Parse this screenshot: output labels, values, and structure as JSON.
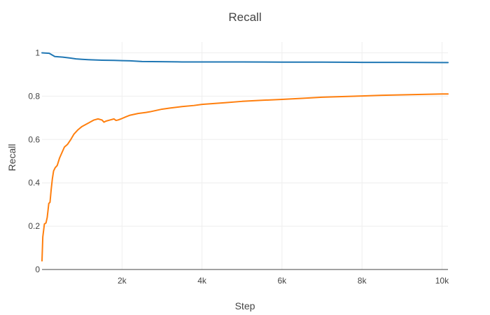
{
  "chart_data": {
    "type": "line",
    "title": "Recall",
    "xlabel": "Step",
    "ylabel": "Recall",
    "xlim": [
      0,
      10150
    ],
    "ylim": [
      0,
      1.05
    ],
    "grid": true,
    "x_ticks": [
      2000,
      4000,
      6000,
      8000,
      10000
    ],
    "x_tick_labels": [
      "2k",
      "4k",
      "6k",
      "8k",
      "10k"
    ],
    "y_ticks": [
      0,
      0.2,
      0.4,
      0.6,
      0.8,
      1
    ],
    "y_tick_labels": [
      "0",
      "0.2",
      "0.4",
      "0.6",
      "0.8",
      "1"
    ],
    "series": [
      {
        "color": "#1f77b4",
        "x": [
          0,
          180,
          320,
          520,
          700,
          850,
          1000,
          1200,
          1500,
          1800,
          2000,
          2200,
          2500,
          3000,
          3500,
          4000,
          5000,
          6000,
          7000,
          8000,
          9000,
          10000,
          10150
        ],
        "y": [
          1.0,
          0.998,
          0.983,
          0.98,
          0.976,
          0.972,
          0.97,
          0.968,
          0.966,
          0.965,
          0.964,
          0.963,
          0.96,
          0.959,
          0.958,
          0.958,
          0.958,
          0.957,
          0.957,
          0.956,
          0.956,
          0.955,
          0.955
        ]
      },
      {
        "color": "#ff7f0e",
        "x": [
          0,
          20,
          60,
          100,
          130,
          170,
          200,
          230,
          260,
          290,
          330,
          380,
          440,
          500,
          560,
          640,
          720,
          800,
          900,
          1000,
          1100,
          1200,
          1300,
          1400,
          1500,
          1550,
          1600,
          1700,
          1800,
          1850,
          1900,
          2000,
          2100,
          2200,
          2400,
          2600,
          2700,
          2800,
          3000,
          3200,
          3500,
          3800,
          4000,
          4300,
          4600,
          5000,
          5500,
          6000,
          6500,
          7000,
          7500,
          8000,
          8500,
          9000,
          9500,
          10000,
          10150
        ],
        "y": [
          0.04,
          0.15,
          0.21,
          0.215,
          0.24,
          0.305,
          0.31,
          0.37,
          0.42,
          0.455,
          0.47,
          0.48,
          0.515,
          0.54,
          0.565,
          0.578,
          0.6,
          0.625,
          0.645,
          0.66,
          0.67,
          0.68,
          0.69,
          0.695,
          0.69,
          0.68,
          0.685,
          0.69,
          0.695,
          0.688,
          0.69,
          0.697,
          0.705,
          0.712,
          0.72,
          0.725,
          0.728,
          0.732,
          0.74,
          0.745,
          0.752,
          0.757,
          0.762,
          0.766,
          0.77,
          0.776,
          0.781,
          0.785,
          0.79,
          0.795,
          0.798,
          0.801,
          0.804,
          0.806,
          0.808,
          0.81,
          0.81
        ]
      }
    ]
  }
}
